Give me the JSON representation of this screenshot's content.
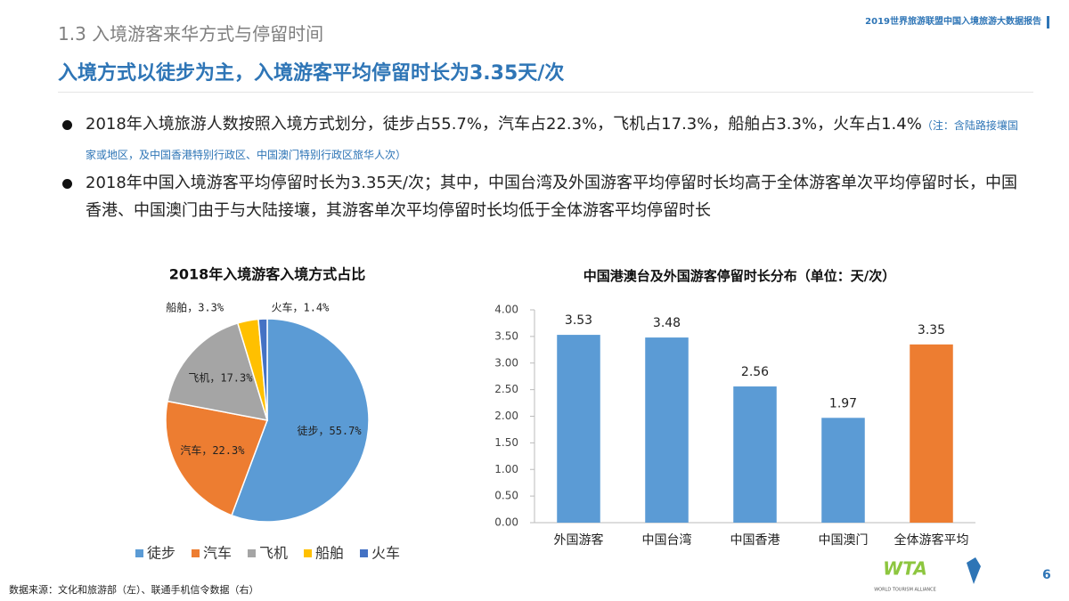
{
  "section_title": "1.3 入境游客来华方式与停留时间",
  "headline": "入境方式以徒步为主，入境游客平均停留时长为3.35天/次",
  "header_right": "2019世界旅游联盟中国入境旅游大数据报告",
  "bullets": [
    {
      "text": "2018年入境旅游人数按照入境方式划分，徒步占55.7%，汽车占22.3%，飞机占17.3%，船舶占3.3%，火车占1.4%",
      "note": "（注：含陆路接壤国家或地区，及中国香港特别行政区、中国澳门特别行政区旅华人次）"
    },
    {
      "text": "2018年中国入境游客平均停留时长为3.35天/次；其中，中国台湾及外国游客平均停留时长均高于全体游客单次平均停留时长，中国香港、中国澳门由于与大陆接壤，其游客单次平均停留时长均低于全体游客平均停留时长"
    }
  ],
  "source": "数据来源：文化和旅游部（左）、联通手机信令数据（右）",
  "logos": [
    "WTA",
    "WORLD TOURISM ALLIANCE"
  ],
  "page_number": "6",
  "chart_data": [
    {
      "type": "pie",
      "title": "2018年入境游客入境方式占比",
      "categories": [
        "徒步",
        "汽车",
        "飞机",
        "船舶",
        "火车"
      ],
      "values": [
        55.7,
        22.3,
        17.3,
        3.3,
        1.4
      ],
      "value_labels": [
        "徒步，55.7%",
        "汽车，22.3%",
        "飞机，17.3%",
        "船舶，3.3%",
        "火车，1.4%"
      ],
      "colors": [
        "#5b9bd5",
        "#ed7d31",
        "#a5a5a5",
        "#ffc000",
        "#4472c4"
      ],
      "legend": "bottom"
    },
    {
      "type": "bar",
      "title": "中国港澳台及外国游客停留时长分布（单位：天/次）",
      "categories": [
        "外国游客",
        "中国台湾",
        "中国香港",
        "中国澳门",
        "全体游客平均"
      ],
      "values": [
        3.53,
        3.48,
        2.56,
        1.97,
        3.35
      ],
      "colors": [
        "#5b9bd5",
        "#5b9bd5",
        "#5b9bd5",
        "#5b9bd5",
        "#ed7d31"
      ],
      "ylim": [
        0,
        4
      ],
      "yticks": [
        {
          "value": 0,
          "label": "0.00"
        },
        {
          "value": 0.5,
          "label": "0.50"
        },
        {
          "value": 1,
          "label": "1.00"
        },
        {
          "value": 1.5,
          "label": "1.50"
        },
        {
          "value": 2,
          "label": "2.00"
        },
        {
          "value": 2.5,
          "label": "2.50"
        },
        {
          "value": 3,
          "label": "3.00"
        },
        {
          "value": 3.5,
          "label": "3.50"
        },
        {
          "value": 4,
          "label": "4.00"
        }
      ],
      "grid": false
    }
  ]
}
